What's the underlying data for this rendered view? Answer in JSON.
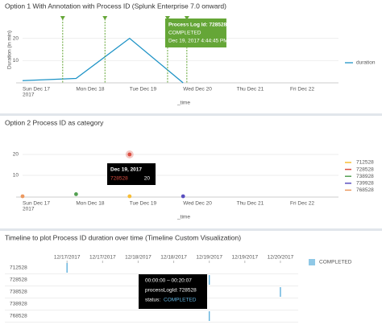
{
  "chart_data": [
    {
      "type": "line",
      "title": "Option 1 With Annotation with Process ID (Splunk Enterprise 7.0 onward)",
      "x_label": "_time",
      "y_label": "Duration (in min)",
      "categories": [
        "Sun Dec 17",
        "Mon Dec 18",
        "Tue Dec 19",
        "Wed Dec 20",
        "Thu Dec 21",
        "Fri Dec 22"
      ],
      "year_label": "2017",
      "series": [
        {
          "name": "duration",
          "color": "#1e93c6",
          "values": [
            1,
            2,
            20,
            0,
            null,
            null
          ]
        }
      ],
      "ylim": [
        0,
        30
      ],
      "yticks": [
        10,
        20
      ],
      "grid": true,
      "legend": "right",
      "annotation_color": "#65a637",
      "annotations": [
        {
          "x": 0.75
        },
        {
          "x": 1.54
        },
        {
          "x": 2.71,
          "label": "Process Log Id: 728528",
          "status": "COMPLETED",
          "time": "Dec 19, 2017 4:44:45 PM"
        },
        {
          "x": 3.07
        }
      ]
    },
    {
      "type": "scatter",
      "title": "Option 2 Process ID as category",
      "x_label": "_time",
      "categories": [
        "Sun Dec 17",
        "Mon Dec 18",
        "Tue Dec 19",
        "Wed Dec 20",
        "Thu Dec 21",
        "Fri Dec 22"
      ],
      "year_label": "2017",
      "series": [
        {
          "name": "712528",
          "color": "#f8be34",
          "values": [
            null,
            null,
            0,
            null,
            null,
            null
          ]
        },
        {
          "name": "728528",
          "color": "#dc4e41",
          "values": [
            null,
            null,
            20,
            null,
            null,
            null
          ]
        },
        {
          "name": "738928",
          "color": "#53a051",
          "values": [
            null,
            1,
            null,
            null,
            null,
            null
          ]
        },
        {
          "name": "739928",
          "color": "#5a4fc0",
          "values": [
            null,
            null,
            null,
            0,
            null,
            null
          ]
        },
        {
          "name": "768528",
          "color": "#ec9960",
          "values": [
            0,
            null,
            null,
            null,
            null,
            null
          ]
        }
      ],
      "ylim": [
        0,
        30
      ],
      "yticks": [
        10,
        20
      ],
      "grid": true,
      "legend": "right",
      "tooltip_title": "Dec 19, 2017"
    },
    {
      "type": "timeline",
      "title": "Timeline to plot Process ID duration over time (Timeline Custom Visualization)",
      "categories": [
        "712528",
        "728528",
        "738528",
        "738928",
        "768528"
      ],
      "series": [
        {
          "name": "COMPLETED",
          "color": "#5fb0dc",
          "values": [
            0,
            2,
            3,
            1.02,
            2
          ]
        }
      ],
      "xlim": [
        -0.24,
        3.25
      ],
      "xticks": [
        {
          "value": 0,
          "label": "12/17/2017"
        },
        {
          "value": 0.5,
          "label": "12/17/2017"
        },
        {
          "value": 1,
          "label": "12/18/2017"
        },
        {
          "value": 1.5,
          "label": "12/18/2017"
        },
        {
          "value": 2,
          "label": "12/19/2017"
        },
        {
          "value": 2.5,
          "label": "12/19/2017"
        },
        {
          "value": 3,
          "label": "12/20/2017"
        }
      ],
      "legend": "right",
      "tooltip_range": "00:00:00 – 00:20:07",
      "tooltip_id_label": "processLogId:",
      "tooltip_status_label": "status:"
    }
  ]
}
